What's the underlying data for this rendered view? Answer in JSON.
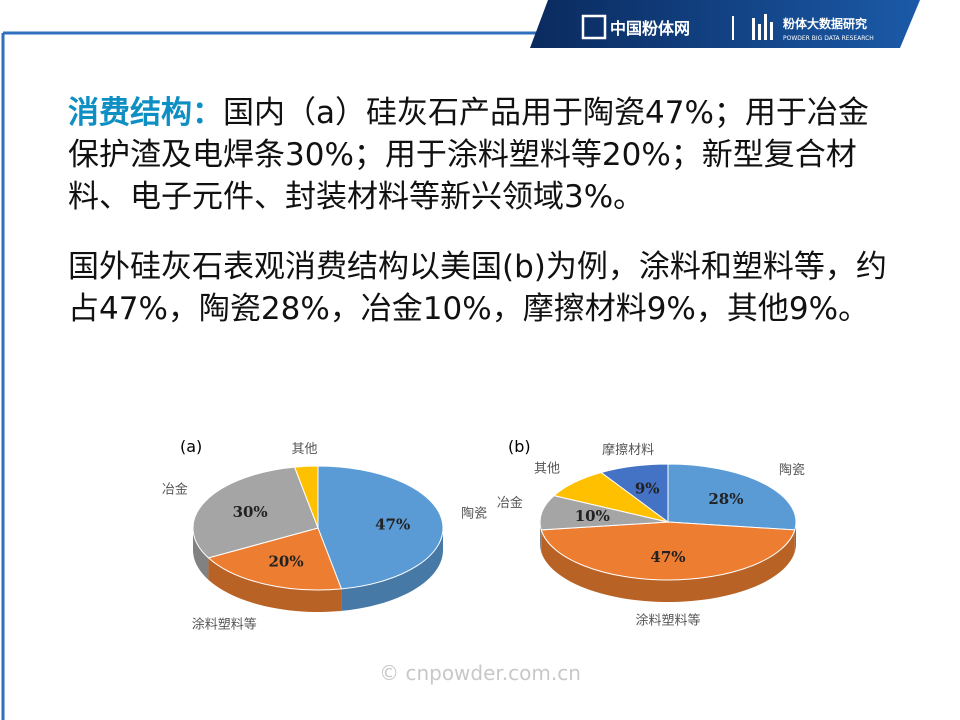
{
  "header": {
    "logo_text": "中国粉体网",
    "brand": "粉体大数据研究",
    "brand_en": "POWDER BIG DATA RESEARCH"
  },
  "paragraphs": [
    {
      "lead": "消费结构：",
      "text": "国内（a）硅灰石产品用于陶瓷47%；用于冶金保护渣及电焊条30%；用于涂料塑料等20%；新型复合材料、电子元件、封装材料等新兴领域3%。"
    },
    {
      "text": "国外硅灰石表观消费结构以美国(b)为例，涂料和塑料等，约占47%，陶瓷28%，冶金10%，摩擦材料9%，其他9%。"
    }
  ],
  "chart_data": [
    {
      "type": "pie",
      "title": "(a)",
      "categories": [
        "陶瓷",
        "涂料塑料等",
        "冶金",
        "其他"
      ],
      "values": [
        47,
        20,
        30,
        3
      ],
      "value_labels": [
        "47%",
        "20%",
        "30%",
        null
      ],
      "colors": [
        "#5b9bd5",
        "#ed7d31",
        "#a5a5a5",
        "#ffc000"
      ]
    },
    {
      "type": "pie",
      "title": "(b)",
      "categories": [
        "陶瓷",
        "涂料塑料等",
        "冶金",
        "其他",
        "摩擦材料"
      ],
      "values": [
        28,
        47,
        10,
        9,
        9
      ],
      "value_labels": [
        "28%",
        "47%",
        "10%",
        null,
        "9%"
      ],
      "colors": [
        "#5b9bd5",
        "#ed7d31",
        "#a5a5a5",
        "#ffc000",
        "#4472c4"
      ]
    }
  ],
  "watermark": "© cnpowder.com.cn"
}
